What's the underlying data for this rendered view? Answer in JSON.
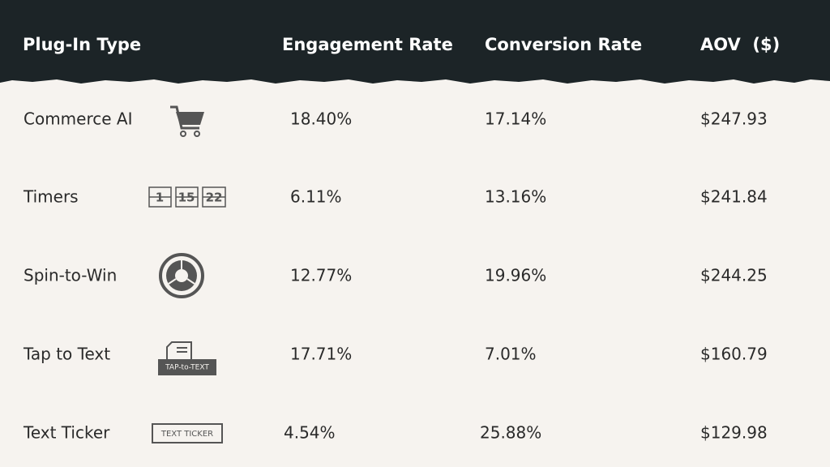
{
  "table": {
    "header": [
      "Plug-In Type",
      "Engagement Rate",
      "Conversion Rate",
      "AOV  ($)"
    ],
    "rows": [
      {
        "name": "Commerce AI",
        "cells": [
          "18.40%",
          "17.14%",
          "$247.93"
        ]
      },
      {
        "name": "Timers",
        "icon_text": [
          "1",
          "15",
          "22"
        ],
        "cells": [
          "6.11%",
          "13.16%",
          "$241.84"
        ]
      },
      {
        "name": "Spin-to-Win",
        "cells": [
          "12.77%",
          "19.96%",
          "$244.25"
        ]
      },
      {
        "name": "Tap to Text",
        "icon_text": [
          "TAP-to-TEXT"
        ],
        "cells": [
          "17.71%",
          "7.01%",
          "$160.79"
        ]
      },
      {
        "name": "Text Ticker",
        "icon_text": [
          "TEXT TICKER"
        ],
        "cells": [
          "4.54%",
          "25.88%",
          "$129.98"
        ]
      }
    ]
  }
}
